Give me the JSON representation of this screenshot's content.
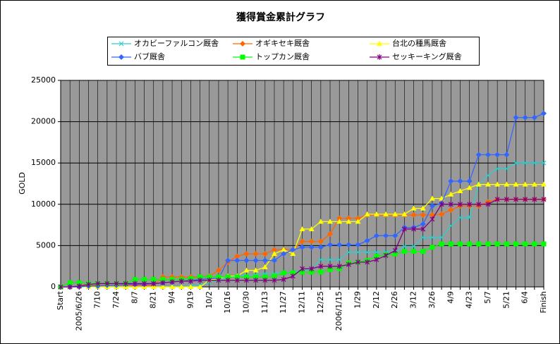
{
  "chart_data": {
    "type": "line",
    "title": "獲得賞金累計グラフ",
    "y_label": "GOLD",
    "categories": [
      "Start",
      null,
      "2005/6/26",
      null,
      "7/10",
      null,
      "7/24",
      null,
      "8/7",
      null,
      "8/21",
      null,
      "9/4",
      null,
      "9/19",
      null,
      "10/2",
      null,
      "10/16",
      null,
      "10/30",
      null,
      "11/13",
      null,
      "11/27",
      null,
      "12/11",
      null,
      "12/25",
      null,
      "2006/1/15",
      null,
      "1/29",
      null,
      "2/12",
      null,
      "2/26",
      null,
      "3/12",
      null,
      "3/26",
      null,
      "4/9",
      null,
      "4/23",
      null,
      "5/7",
      null,
      "5/21",
      null,
      "6/4",
      null,
      "Finish"
    ],
    "ylim": [
      0,
      25000
    ],
    "yticks": [
      0,
      5000,
      10000,
      15000,
      20000,
      25000
    ],
    "grid": true,
    "plot_background": "#999999",
    "series": [
      {
        "name": "オカビーファルコン厩舎",
        "color": "#33cccc",
        "marker": "x",
        "values": [
          0,
          0,
          0,
          0,
          0,
          0,
          0,
          0,
          0,
          0,
          0,
          0,
          0,
          0,
          100,
          200,
          500,
          800,
          1200,
          1300,
          1400,
          1500,
          1600,
          1600,
          1700,
          1800,
          1900,
          2200,
          3300,
          3300,
          3300,
          4200,
          4200,
          4200,
          4200,
          4200,
          4200,
          4900,
          4900,
          6000,
          6000,
          6000,
          7400,
          8400,
          8400,
          12400,
          13500,
          14300,
          14300,
          15000,
          15000,
          15000,
          15000
        ]
      },
      {
        "name": "オギキセキ厩舎",
        "color": "#ff6600",
        "marker": "diamond",
        "values": [
          0,
          0,
          0,
          200,
          200,
          200,
          200,
          200,
          200,
          200,
          200,
          1200,
          1200,
          1200,
          1200,
          1200,
          1300,
          2000,
          3000,
          3700,
          4000,
          4000,
          4000,
          4500,
          4500,
          4500,
          5500,
          5500,
          5500,
          6400,
          8300,
          8300,
          8300,
          8700,
          8700,
          8700,
          8700,
          8700,
          8700,
          8700,
          8700,
          8800,
          9300,
          9800,
          9800,
          9800,
          10300,
          10600,
          10600,
          10600,
          10600,
          10600,
          10600
        ]
      },
      {
        "name": "台北の種馬厩舎",
        "color": "#ffff00",
        "marker": "triangle",
        "values": [
          0,
          0,
          0,
          0,
          0,
          0,
          0,
          0,
          0,
          0,
          0,
          0,
          0,
          0,
          0,
          0,
          800,
          1000,
          1300,
          1300,
          2000,
          2000,
          2400,
          4000,
          4500,
          4000,
          7000,
          7000,
          7900,
          7900,
          7900,
          7900,
          7900,
          8800,
          8800,
          8800,
          8800,
          8800,
          9500,
          9500,
          10700,
          10700,
          11200,
          11600,
          12000,
          12400,
          12400,
          12400,
          12400,
          12400,
          12400,
          12400,
          12400
        ]
      },
      {
        "name": "バブ厩舎",
        "color": "#3366ff",
        "marker": "diamond",
        "values": [
          0,
          0,
          0,
          100,
          100,
          200,
          200,
          300,
          300,
          300,
          400,
          500,
          600,
          700,
          800,
          900,
          1000,
          1000,
          3200,
          3200,
          3200,
          3200,
          3200,
          3200,
          4000,
          4500,
          4800,
          4800,
          4800,
          5100,
          5100,
          5100,
          5100,
          5600,
          6200,
          6200,
          6200,
          7200,
          7200,
          7600,
          9800,
          10100,
          12800,
          12800,
          12800,
          16000,
          16000,
          16000,
          16000,
          20500,
          20500,
          20500,
          21000
        ]
      },
      {
        "name": "トップカン厩舎",
        "color": "#00ff00",
        "marker": "square",
        "values": [
          0,
          500,
          500,
          400,
          400,
          400,
          400,
          400,
          900,
          900,
          900,
          900,
          900,
          900,
          1000,
          1200,
          1200,
          1200,
          1200,
          1200,
          1200,
          1200,
          1200,
          1300,
          1700,
          1700,
          1800,
          1800,
          1800,
          2100,
          2200,
          2900,
          3000,
          3200,
          3700,
          3900,
          4000,
          4300,
          4300,
          4300,
          4800,
          5200,
          5200,
          5200,
          5200,
          5200,
          5200,
          5200,
          5200,
          5200,
          5200,
          5200,
          5200
        ]
      },
      {
        "name": "セッキーキング厩舎",
        "color": "#800080",
        "marker": "star",
        "values": [
          0,
          0,
          100,
          300,
          400,
          400,
          400,
          400,
          400,
          400,
          400,
          500,
          600,
          700,
          700,
          800,
          800,
          800,
          800,
          800,
          800,
          800,
          800,
          800,
          900,
          1300,
          2200,
          2200,
          2500,
          2500,
          2500,
          2700,
          3000,
          3000,
          3300,
          3800,
          4400,
          7000,
          7000,
          7000,
          8200,
          10000,
          10000,
          10000,
          10000,
          10000,
          10000,
          10600,
          10600,
          10600,
          10600,
          10600,
          10600
        ]
      }
    ]
  }
}
